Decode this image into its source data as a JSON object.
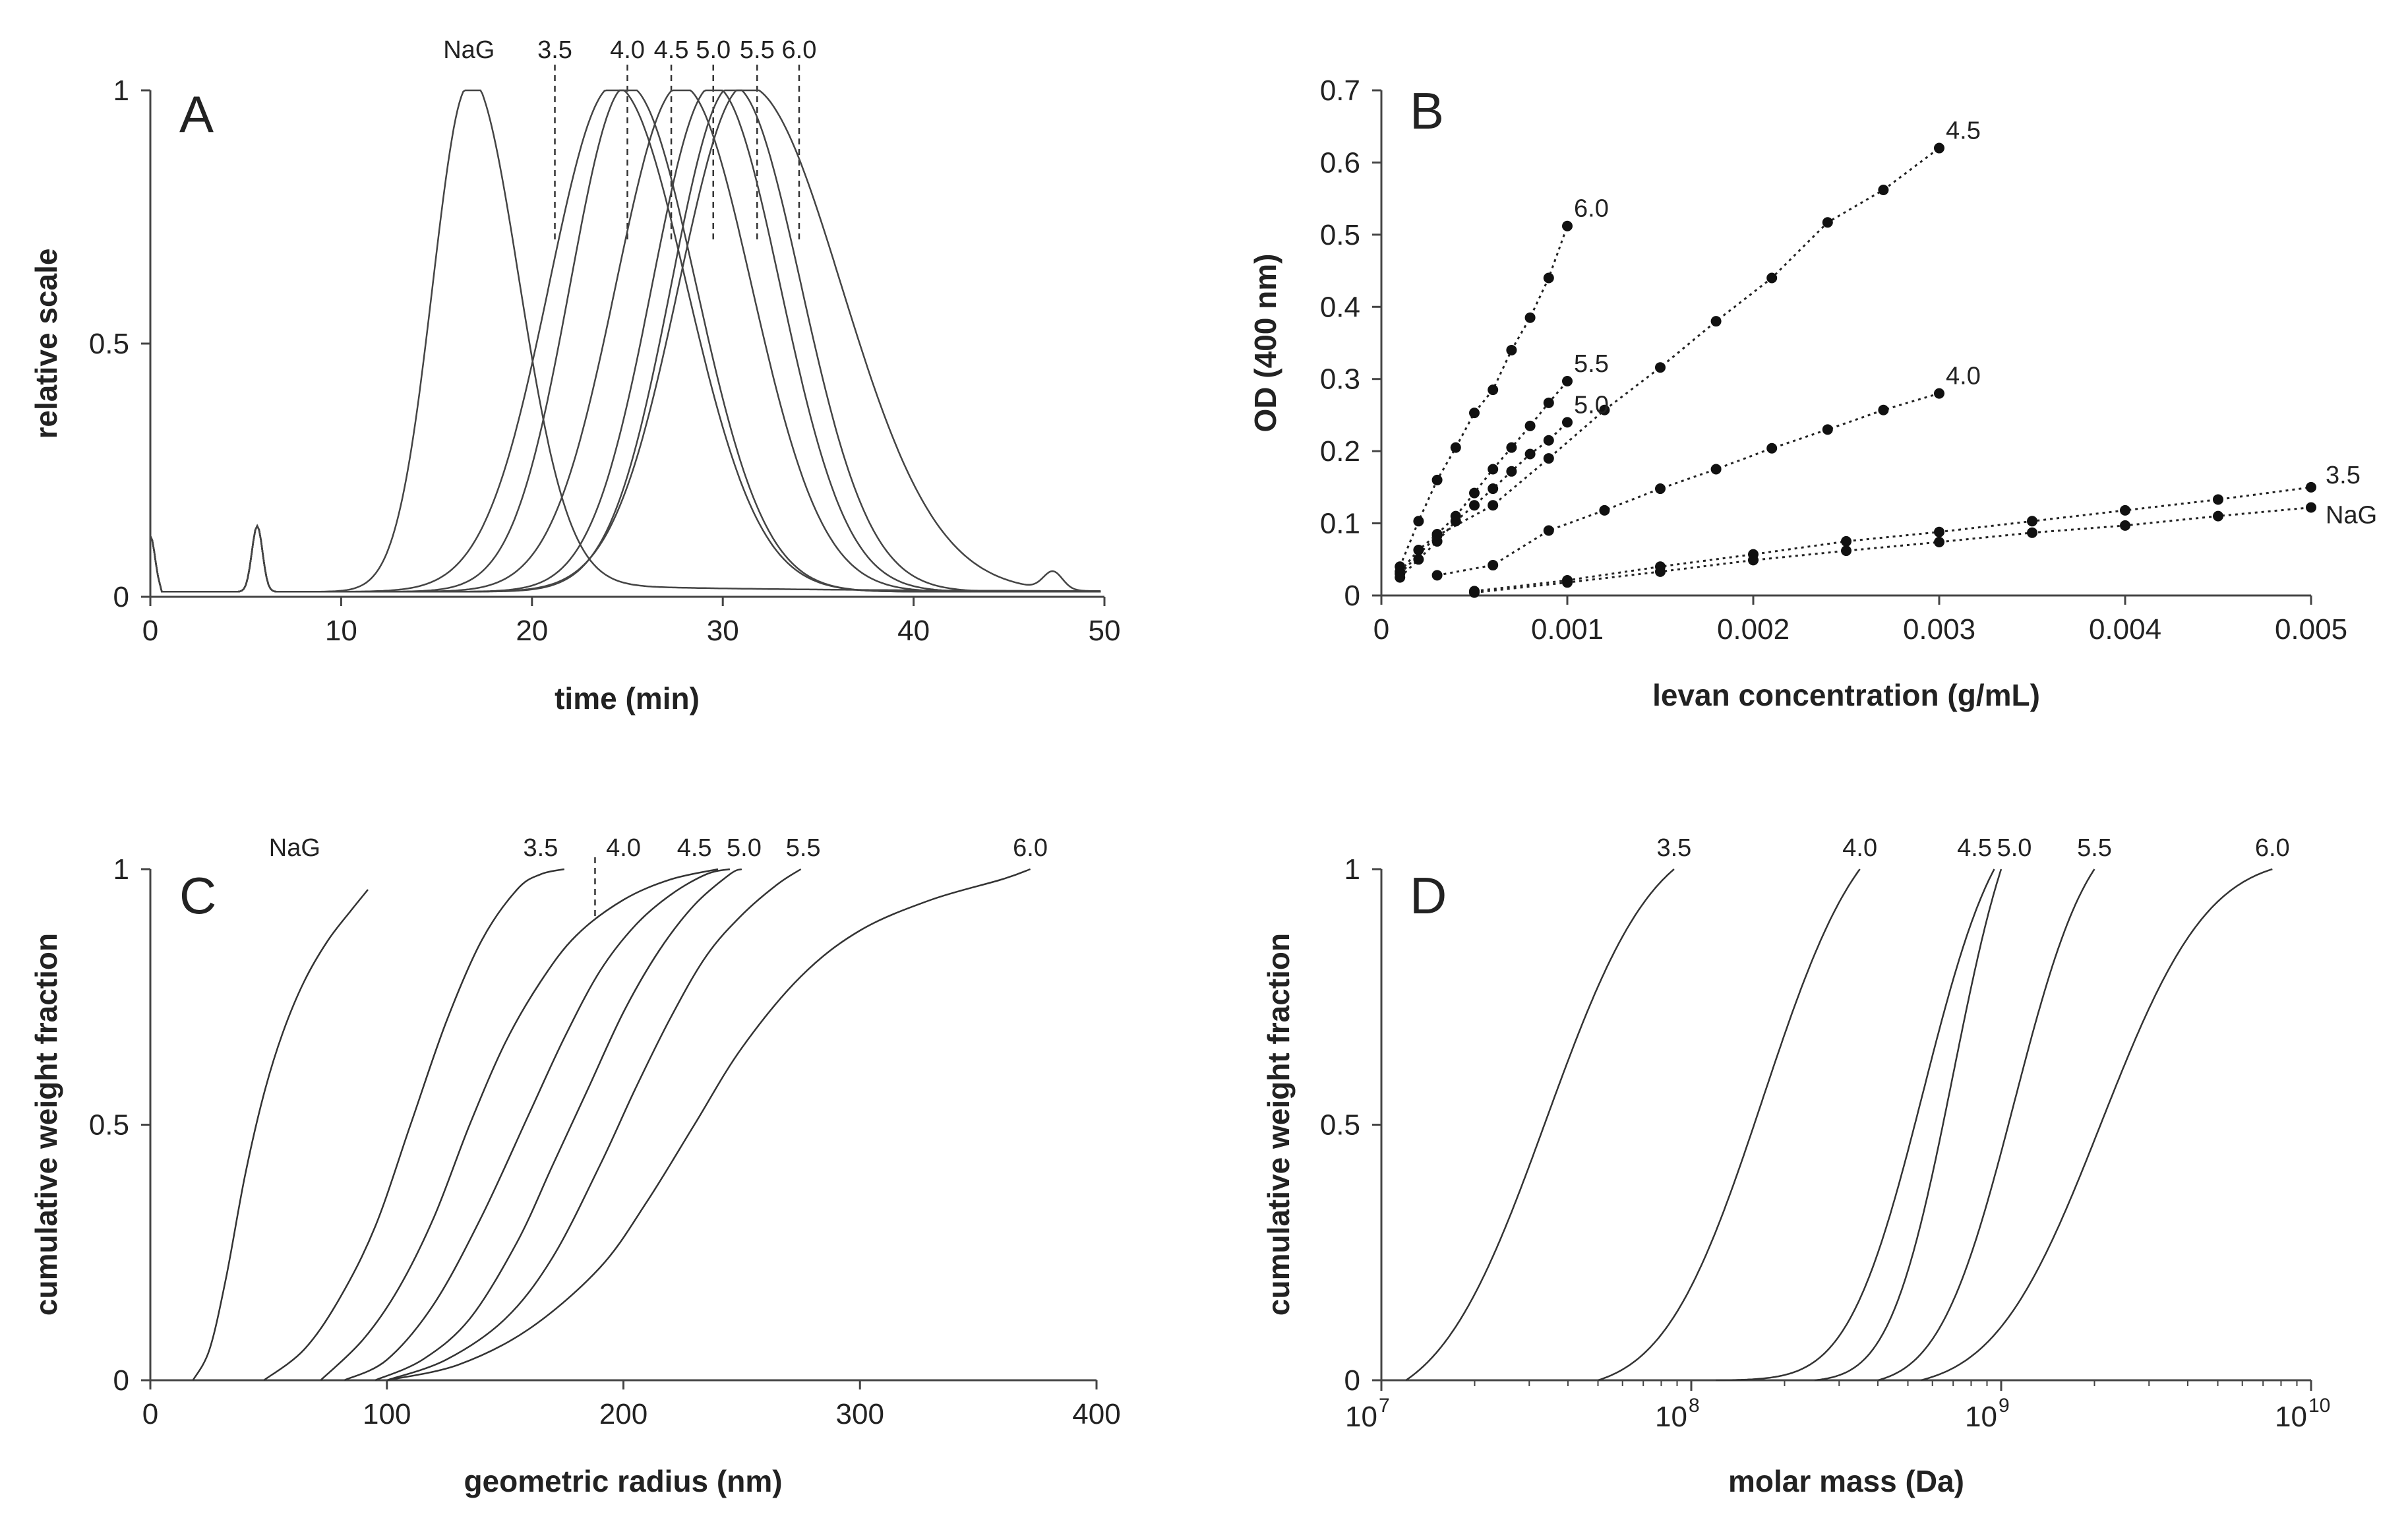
{
  "chart_data": [
    {
      "panel": "A",
      "type": "line",
      "xlabel": "time (min)",
      "ylabel": "relative scale",
      "xlim": [
        0,
        50
      ],
      "ylim": [
        0,
        1
      ],
      "xticks": [
        0,
        10,
        20,
        30,
        40,
        50
      ],
      "yticks": [
        0,
        0.5,
        1
      ],
      "ytick_labels": [
        "0",
        "0.5",
        "1"
      ],
      "series": [
        {
          "name": "NaG",
          "peak": 16.7,
          "sl": 1.9,
          "sr": 2.6,
          "tail": 0.02
        },
        {
          "name": "3.5",
          "peak": 24.3,
          "sl": 3.4,
          "sr": 3.8,
          "tail": 0.0
        },
        {
          "name": "4.0",
          "peak": 25.0,
          "sl": 3.0,
          "sr": 3.6,
          "tail": 0.0
        },
        {
          "name": "4.5",
          "peak": 27.8,
          "sl": 3.4,
          "sr": 3.7,
          "tail": 0.0
        },
        {
          "name": "5.0",
          "peak": 29.5,
          "sl": 3.2,
          "sr": 3.5,
          "tail": 0.0
        },
        {
          "name": "5.5",
          "peak": 30.5,
          "sl": 3.2,
          "sr": 3.6,
          "tail": 0.0
        },
        {
          "name": "6.0",
          "peak": 31.2,
          "sl": 3.5,
          "sr": 5.0,
          "tail": 0.0
        }
      ],
      "marker_lines": [
        {
          "label": "NaG",
          "x": 16.7,
          "dashed": false
        },
        {
          "label": "3.5",
          "x": 21.2,
          "dashed": true
        },
        {
          "label": "4.0",
          "x": 25.0,
          "dashed": true
        },
        {
          "label": "4.5",
          "x": 27.3,
          "dashed": true
        },
        {
          "label": "5.0",
          "x": 29.5,
          "dashed": true
        },
        {
          "label": "5.5",
          "x": 31.8,
          "dashed": true
        },
        {
          "label": "6.0",
          "x": 34.0,
          "dashed": true
        }
      ]
    },
    {
      "panel": "B",
      "type": "scatter",
      "xlabel": "levan concentration (g/mL)",
      "ylabel": "OD (400 nm)",
      "xlim": [
        0,
        0.005
      ],
      "ylim": [
        0,
        0.7
      ],
      "xticks": [
        0,
        0.001,
        0.002,
        0.003,
        0.004,
        0.005
      ],
      "xtick_labels": [
        "0",
        "0.001",
        "0.002",
        "0.003",
        "0.004",
        "0.005"
      ],
      "yticks": [
        0,
        0.1,
        0.2,
        0.3,
        0.4,
        0.5,
        0.6,
        0.7
      ],
      "ytick_labels": [
        "0",
        "0.1",
        "0.2",
        "0.3",
        "0.4",
        "0.5",
        "0.6",
        "0.7"
      ],
      "series": [
        {
          "name": "6.0",
          "x": [
            0.0001,
            0.0002,
            0.0003,
            0.0004,
            0.0005,
            0.0006,
            0.0007,
            0.0008,
            0.0009,
            0.001
          ],
          "y": [
            0.04,
            0.103,
            0.16,
            0.205,
            0.253,
            0.285,
            0.34,
            0.385,
            0.44,
            0.512
          ]
        },
        {
          "name": "4.5",
          "x": [
            0.0001,
            0.0003,
            0.0006,
            0.0009,
            0.0012,
            0.0015,
            0.0018,
            0.0021,
            0.0024,
            0.0027,
            0.003
          ],
          "y": [
            0.03,
            0.083,
            0.125,
            0.19,
            0.257,
            0.316,
            0.38,
            0.44,
            0.517,
            0.562,
            0.62
          ]
        },
        {
          "name": "5.5",
          "x": [
            0.0001,
            0.0002,
            0.0003,
            0.0004,
            0.0005,
            0.0006,
            0.0007,
            0.0008,
            0.0009,
            0.001
          ],
          "y": [
            0.033,
            0.063,
            0.085,
            0.11,
            0.142,
            0.175,
            0.205,
            0.235,
            0.267,
            0.297
          ]
        },
        {
          "name": "5.0",
          "x": [
            0.0001,
            0.0002,
            0.0003,
            0.0004,
            0.0005,
            0.0006,
            0.0007,
            0.0008,
            0.0009,
            0.001
          ],
          "y": [
            0.025,
            0.05,
            0.075,
            0.103,
            0.125,
            0.148,
            0.172,
            0.196,
            0.215,
            0.24
          ]
        },
        {
          "name": "4.0",
          "x": [
            0.0003,
            0.0006,
            0.0009,
            0.0012,
            0.0015,
            0.0018,
            0.0021,
            0.0024,
            0.0027,
            0.003
          ],
          "y": [
            0.028,
            0.042,
            0.09,
            0.118,
            0.148,
            0.175,
            0.204,
            0.23,
            0.257,
            0.28
          ]
        },
        {
          "name": "3.5",
          "x": [
            0.0005,
            0.001,
            0.0015,
            0.002,
            0.0025,
            0.003,
            0.0035,
            0.004,
            0.0045,
            0.005
          ],
          "y": [
            0.006,
            0.021,
            0.04,
            0.057,
            0.075,
            0.088,
            0.103,
            0.118,
            0.133,
            0.15
          ]
        },
        {
          "name": "NaG",
          "x": [
            0.0005,
            0.001,
            0.0015,
            0.002,
            0.0025,
            0.003,
            0.0035,
            0.004,
            0.0045,
            0.005
          ],
          "y": [
            0.004,
            0.018,
            0.033,
            0.049,
            0.062,
            0.074,
            0.087,
            0.097,
            0.11,
            0.122
          ]
        }
      ]
    },
    {
      "panel": "C",
      "type": "line",
      "xlabel": "geometric radius (nm)",
      "ylabel": "cumulative weight fraction",
      "xlim": [
        0,
        400
      ],
      "ylim": [
        0,
        1
      ],
      "xticks": [
        0,
        100,
        200,
        300,
        400
      ],
      "yticks": [
        0,
        0.5,
        1
      ],
      "ytick_labels": [
        "0",
        "0.5",
        "1"
      ],
      "series": [
        {
          "name": "NaG",
          "x": [
            18,
            25,
            32,
            40,
            48,
            56,
            65,
            75,
            85,
            92
          ],
          "y": [
            0,
            0.06,
            0.2,
            0.4,
            0.56,
            0.68,
            0.78,
            0.86,
            0.92,
            0.96
          ]
        },
        {
          "name": "3.5",
          "x": [
            48,
            65,
            80,
            95,
            110,
            125,
            140,
            155,
            165,
            175
          ],
          "y": [
            0,
            0.06,
            0.16,
            0.3,
            0.5,
            0.7,
            0.86,
            0.96,
            0.99,
            1.0
          ]
        },
        {
          "name": "4.0",
          "x": [
            72,
            90,
            105,
            120,
            135,
            150,
            165,
            180,
            200,
            220,
            240
          ],
          "y": [
            0,
            0.08,
            0.18,
            0.32,
            0.5,
            0.66,
            0.78,
            0.87,
            0.94,
            0.98,
            1.0
          ]
        },
        {
          "name": "4.5",
          "x": [
            82,
            100,
            120,
            140,
            160,
            175,
            190,
            205,
            220,
            235,
            245
          ],
          "y": [
            0,
            0.04,
            0.15,
            0.32,
            0.52,
            0.67,
            0.8,
            0.89,
            0.95,
            0.99,
            1.0
          ]
        },
        {
          "name": "5.0",
          "x": [
            95,
            115,
            135,
            155,
            170,
            185,
            200,
            215,
            230,
            245,
            250
          ],
          "y": [
            0,
            0.04,
            0.12,
            0.27,
            0.42,
            0.57,
            0.72,
            0.84,
            0.93,
            0.99,
            1.0
          ]
        },
        {
          "name": "5.5",
          "x": [
            100,
            125,
            150,
            170,
            190,
            205,
            220,
            235,
            250,
            265,
            275
          ],
          "y": [
            0,
            0.04,
            0.12,
            0.24,
            0.42,
            0.57,
            0.71,
            0.83,
            0.91,
            0.97,
            1.0
          ]
        },
        {
          "name": "6.0",
          "x": [
            100,
            130,
            160,
            190,
            210,
            230,
            250,
            275,
            300,
            330,
            360,
            372
          ],
          "y": [
            0,
            0.03,
            0.1,
            0.22,
            0.35,
            0.5,
            0.65,
            0.79,
            0.88,
            0.94,
            0.98,
            1.0
          ]
        }
      ],
      "marker_lines": [
        {
          "label": "4.0",
          "x": 188,
          "dashed": true
        }
      ]
    },
    {
      "panel": "D",
      "type": "line",
      "xscale": "log",
      "xlabel": "molar mass (Da)",
      "ylabel": "cumulative weight fraction",
      "xlim": [
        10000000,
        10000000000
      ],
      "ylim": [
        0,
        1
      ],
      "xtick_base": "10",
      "xtick_exponents": [
        "7",
        "8",
        "9",
        "10"
      ],
      "yticks": [
        0,
        0.5,
        1
      ],
      "ytick_labels": [
        "0",
        "0.5",
        "1"
      ],
      "series": [
        {
          "name": "3.5",
          "median": 34000000,
          "sigma": 0.27,
          "xmin": 12000000,
          "xmax": 88000000
        },
        {
          "name": "4.0",
          "median": 170000000,
          "sigma": 0.25,
          "xmin": 50000000,
          "xmax": 350000000
        },
        {
          "name": "4.5",
          "median": 560000000,
          "sigma": 0.19,
          "xmin": 120000000,
          "xmax": 950000000
        },
        {
          "name": "5.0",
          "median": 700000000,
          "sigma": 0.16,
          "xmin": 250000000,
          "xmax": 1000000000
        },
        {
          "name": "5.5",
          "median": 1100000000,
          "sigma": 0.19,
          "xmin": 400000000,
          "xmax": 2000000000
        },
        {
          "name": "6.0",
          "median": 2100000000,
          "sigma": 0.27,
          "xmin": 550000000,
          "xmax": 7500000000
        }
      ]
    }
  ]
}
